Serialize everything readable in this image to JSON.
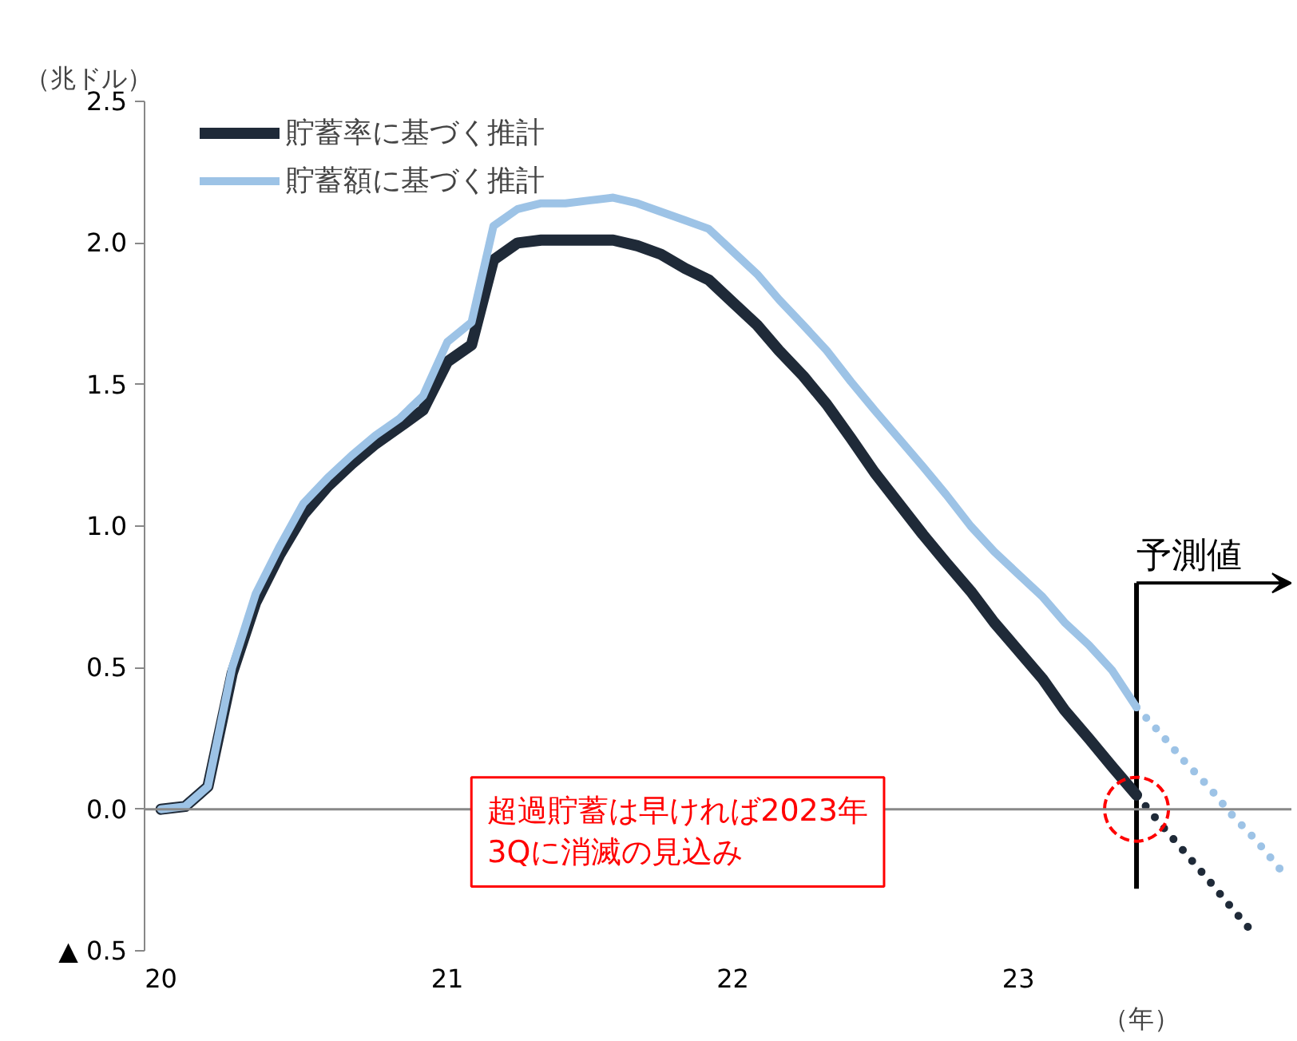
{
  "chart_data": {
    "type": "line",
    "ylabel": "（兆ドル）",
    "xlabel": "（年）",
    "x": [
      "2020-01",
      "2020-02",
      "2020-03",
      "2020-04",
      "2020-05",
      "2020-06",
      "2020-07",
      "2020-08",
      "2020-09",
      "2020-10",
      "2020-11",
      "2020-12",
      "2021-01",
      "2021-02",
      "2021-03",
      "2021-04",
      "2021-05",
      "2021-06",
      "2021-07",
      "2021-08",
      "2021-09",
      "2021-10",
      "2021-11",
      "2021-12",
      "2022-01",
      "2022-02",
      "2022-03",
      "2022-04",
      "2022-05",
      "2022-06",
      "2022-07",
      "2022-08",
      "2022-09",
      "2022-10",
      "2022-11",
      "2022-12",
      "2023-01",
      "2023-02",
      "2023-03",
      "2023-04",
      "2023-05",
      "2023-06",
      "2023-07",
      "2023-08",
      "2023-09",
      "2023-10",
      "2023-11",
      "2023-12"
    ],
    "series": [
      {
        "name": "貯蓄率に基づく推計",
        "color": "#1f2a38",
        "values": [
          0.0,
          0.01,
          0.08,
          0.48,
          0.73,
          0.9,
          1.04,
          1.14,
          1.22,
          1.29,
          1.35,
          1.41,
          1.58,
          1.64,
          1.94,
          2.0,
          2.01,
          2.01,
          2.01,
          2.01,
          1.99,
          1.96,
          1.91,
          1.87,
          1.79,
          1.71,
          1.62,
          1.53,
          1.43,
          1.31,
          1.19,
          1.08,
          0.97,
          0.87,
          0.77,
          0.66,
          0.56,
          0.46,
          0.35,
          0.25,
          0.15,
          0.05,
          null,
          null,
          null,
          null,
          null,
          null
        ]
      },
      {
        "name": "貯蓄額に基づく推計",
        "color": "#9dc3e6",
        "values": [
          0.0,
          0.01,
          0.08,
          0.5,
          0.76,
          0.93,
          1.08,
          1.17,
          1.25,
          1.32,
          1.38,
          1.46,
          1.65,
          1.72,
          2.06,
          2.12,
          2.14,
          2.14,
          2.15,
          2.16,
          2.14,
          2.11,
          2.08,
          2.05,
          1.97,
          1.89,
          1.8,
          1.71,
          1.62,
          1.51,
          1.41,
          1.31,
          1.21,
          1.11,
          1.0,
          0.91,
          0.83,
          0.75,
          0.66,
          0.58,
          0.49,
          0.36,
          null,
          null,
          null,
          null,
          null,
          null
        ]
      },
      {
        "color": "#1f2a38",
        "line_style": "dotted",
        "values": [
          null,
          null,
          null,
          null,
          null,
          null,
          null,
          null,
          null,
          null,
          null,
          null,
          null,
          null,
          null,
          null,
          null,
          null,
          null,
          null,
          null,
          null,
          null,
          null,
          null,
          null,
          null,
          null,
          null,
          null,
          null,
          null,
          null,
          null,
          null,
          null,
          null,
          null,
          null,
          null,
          null,
          0.05,
          -0.05,
          -0.15,
          -0.25,
          -0.35,
          -0.45,
          null
        ]
      },
      {
        "color": "#9dc3e6",
        "line_style": "dotted",
        "values": [
          null,
          null,
          null,
          null,
          null,
          null,
          null,
          null,
          null,
          null,
          null,
          null,
          null,
          null,
          null,
          null,
          null,
          null,
          null,
          null,
          null,
          null,
          null,
          null,
          null,
          null,
          null,
          null,
          null,
          null,
          null,
          null,
          null,
          null,
          null,
          null,
          null,
          null,
          null,
          null,
          null,
          0.36,
          0.27,
          0.17,
          0.08,
          -0.02,
          -0.11,
          -0.21
        ]
      },
      {
        "type": "scatter",
        "color": "#ff0000",
        "marker": "circle",
        "line_style": "dashed",
        "x": [
          "2023-06"
        ],
        "values": [
          0
        ]
      }
    ],
    "xlim": [
      "2019-12-11",
      "2023-12-16"
    ],
    "xticks": [
      {
        "value": "2020-01",
        "label": "20"
      },
      {
        "value": "2021-01",
        "label": "21"
      },
      {
        "value": "2022-01",
        "label": "22"
      },
      {
        "value": "2023-01",
        "label": "23"
      }
    ],
    "ylim": [
      -0.5,
      2.5
    ],
    "yticks": [
      {
        "value": -0.5,
        "label": "▲ 0.5"
      },
      {
        "value": 0,
        "label": "0.0"
      },
      {
        "value": 0.5,
        "label": "0.5"
      },
      {
        "value": 1,
        "label": "1.0"
      },
      {
        "value": 1.5,
        "label": "1.5"
      },
      {
        "value": 2,
        "label": "2.0"
      },
      {
        "value": 2.5,
        "label": "2.5"
      }
    ],
    "ref_lines": [
      {
        "axis": "y",
        "value": 0,
        "color": "#888888"
      },
      {
        "axis": "x",
        "value": "2023-06",
        "label": "予測値",
        "color": "#000000"
      }
    ],
    "annotations": [
      "超過貯蓄は早ければ2023年\n3Qに消滅の見込み"
    ],
    "line_style": "solid",
    "marker": "none",
    "grid": false,
    "legend": "top left"
  }
}
